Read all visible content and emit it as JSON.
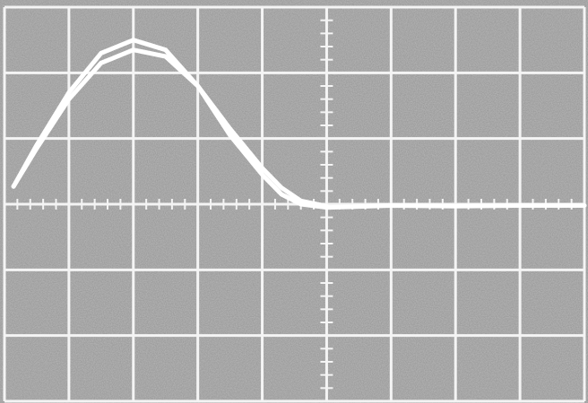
{
  "chart_data": {
    "type": "line",
    "xlim": [
      0,
      9
    ],
    "ylim": [
      -3,
      3
    ],
    "xticks": [
      0,
      1,
      2,
      3,
      4,
      5,
      6,
      7,
      8,
      9
    ],
    "yticks": [
      -3,
      -2,
      -1,
      0,
      1,
      2,
      3
    ],
    "grid": true,
    "series": [
      {
        "color": "#ffffff",
        "x": [
          0.14,
          0.5,
          1,
          1.5,
          2,
          2.5,
          3,
          3.5,
          4,
          4.3,
          4.6,
          5,
          6,
          7,
          8,
          9
        ],
        "values": [
          0.27,
          0.9,
          1.7,
          2.3,
          2.5,
          2.35,
          1.8,
          1.05,
          0.45,
          0.15,
          0,
          -0.05,
          -0.02,
          -0.03,
          -0.02,
          -0.02
        ]
      },
      {
        "color": "#ffffff",
        "x": [
          0.14,
          0.5,
          1,
          1.5,
          2,
          2.5,
          3,
          3.5,
          4,
          4.3,
          4.6,
          5
        ],
        "values": [
          0.27,
          0.85,
          1.6,
          2.15,
          2.35,
          2.25,
          1.8,
          1.15,
          0.55,
          0.25,
          0.05,
          -0.03
        ]
      }
    ]
  }
}
